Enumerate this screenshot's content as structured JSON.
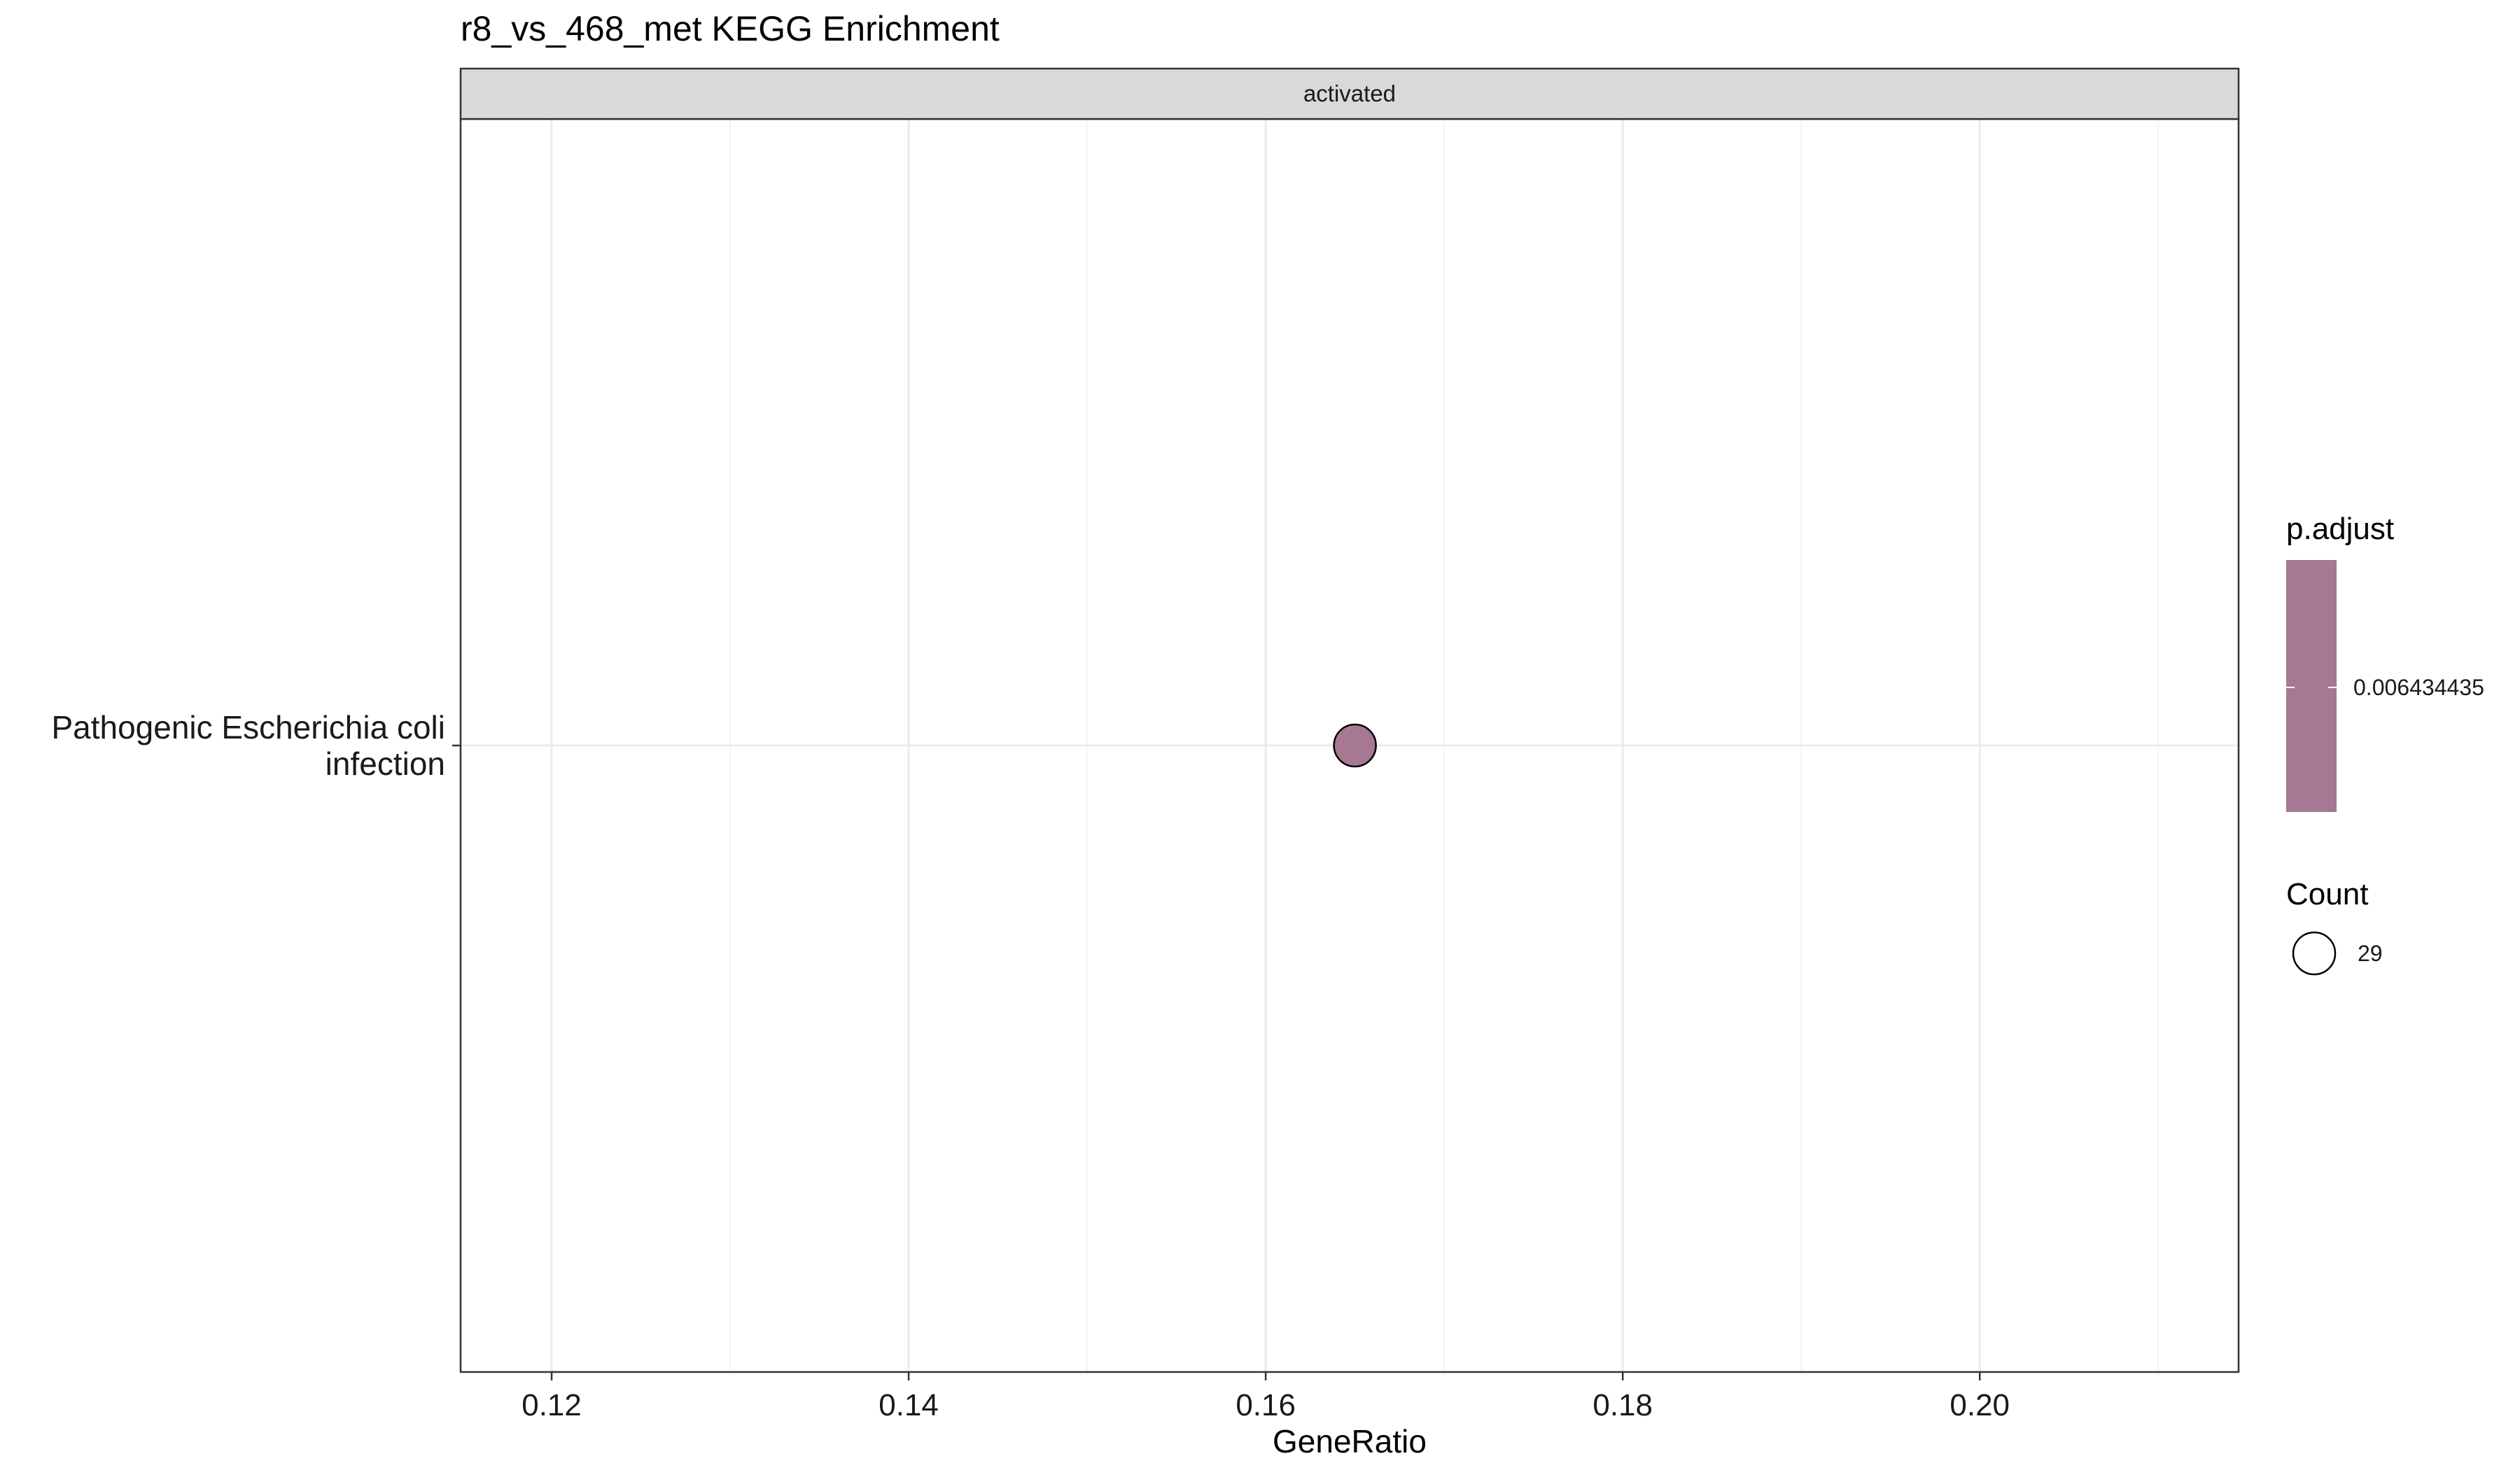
{
  "chart_data": {
    "type": "scatter",
    "title": "r8_vs_468_met KEGG Enrichment",
    "facet": "activated",
    "xlabel": "GeneRatio",
    "ylabel": "",
    "xlim": [
      0.1149,
      0.2145
    ],
    "xticks": [
      0.12,
      0.14,
      0.16,
      0.18,
      0.2
    ],
    "xtick_labels": [
      "0.12",
      "0.14",
      "0.16",
      "0.18",
      "0.20"
    ],
    "categories": [
      "Pathogenic Escherichia coli infection"
    ],
    "category_label_lines": [
      [
        "Pathogenic Escherichia coli",
        "infection"
      ]
    ],
    "grid": true,
    "points": [
      {
        "term": "Pathogenic Escherichia coli infection",
        "x": 0.165,
        "count": 29,
        "p_adjust": 0.006434435,
        "color": "#A67891"
      }
    ],
    "legend": {
      "position": "right",
      "color_title": "p.adjust",
      "color_label": "0.006434435",
      "color": "#A67891",
      "size_title": "Count",
      "size_label": "29"
    },
    "colors": {
      "point_outline": "#000000",
      "panel_border": "#333333",
      "strip_fill": "#D9D9D9",
      "grid_major": "#EBEBEB",
      "grid_minor": "#F4F4F4"
    }
  }
}
